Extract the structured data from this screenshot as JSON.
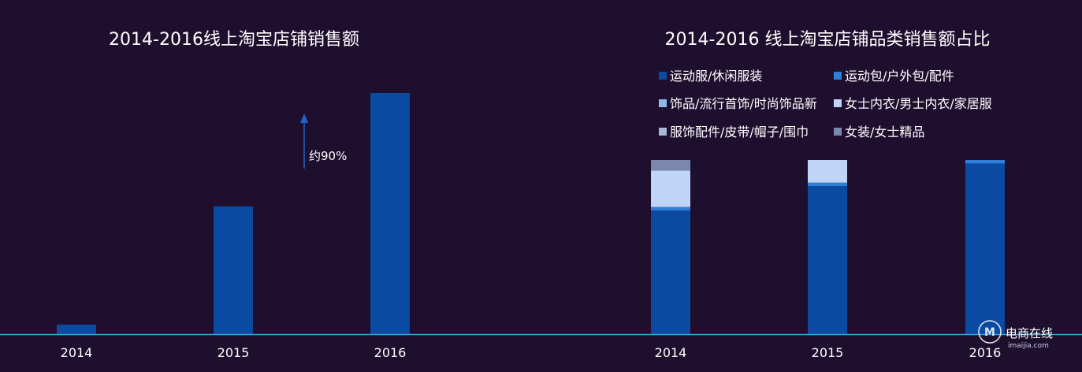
{
  "colors": {
    "background": "#1f0f2f",
    "baseline": "#3ea6d9",
    "left_bar": "#0a4aa0",
    "arrow": "#1f63c4"
  },
  "chart_data": [
    {
      "type": "bar",
      "title": "2014-2016线上淘宝店铺销售额",
      "categories": [
        "2014",
        "2015",
        "2016"
      ],
      "values": [
        4,
        53,
        100
      ],
      "ylim": [
        0,
        100
      ],
      "grid": false,
      "annotation": {
        "text": "约90%",
        "between": [
          "2015",
          "2016"
        ],
        "style": "up-arrow"
      }
    },
    {
      "type": "bar",
      "stacked": true,
      "normalized_percent": true,
      "title": "2014-2016 线上淘宝店铺品类销售额占比",
      "categories": [
        "2014",
        "2015",
        "2016"
      ],
      "ylim": [
        0,
        100
      ],
      "grid": false,
      "legend_position": "top",
      "series": [
        {
          "name": "运动服/休闲服装",
          "color": "#0a4aa0",
          "values": [
            71,
            85,
            98
          ]
        },
        {
          "name": "运动包/户外包/配件",
          "color": "#2f7fd8",
          "values": [
            2,
            2,
            2
          ]
        },
        {
          "name": "饰品/流行首饰/时尚饰品新",
          "color": "#8fb8f0",
          "values": [
            0,
            0,
            0
          ]
        },
        {
          "name": "女士内衣/男士内衣/家居服",
          "color": "#bfd5f8",
          "values": [
            21,
            13,
            0
          ]
        },
        {
          "name": "服饰配件/皮带/帽子/围巾",
          "color": "#a9b8d9",
          "values": [
            0,
            0,
            0
          ]
        },
        {
          "name": "女装/女士精品",
          "color": "#7b88ad",
          "values": [
            6,
            0,
            0
          ]
        }
      ]
    }
  ],
  "watermark": {
    "name": "电商在线",
    "url": "imaijia.com"
  }
}
